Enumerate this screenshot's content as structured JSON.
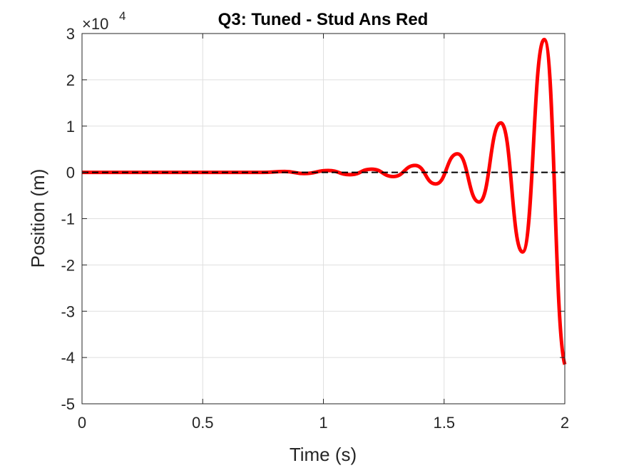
{
  "chart_data": {
    "type": "line",
    "title": "Q3: Tuned - Stud Ans Red",
    "xlabel": "Time (s)",
    "ylabel": "Position (m)",
    "xlim": [
      0,
      2
    ],
    "ylim": [
      -50000,
      30000
    ],
    "y_exponent_label": "×10",
    "y_exponent": "4",
    "x_ticks": [
      0,
      0.5,
      1,
      1.5,
      2
    ],
    "x_tick_labels": [
      "0",
      "0.5",
      "1",
      "1.5",
      "2"
    ],
    "y_ticks": [
      -50000,
      -40000,
      -30000,
      -20000,
      -10000,
      0,
      10000,
      20000,
      30000
    ],
    "y_tick_labels": [
      "-5",
      "-4",
      "-3",
      "-2",
      "-1",
      "0",
      "1",
      "2",
      "3"
    ],
    "grid": true,
    "series": [
      {
        "style": "solid",
        "color": "#ff0000",
        "x": [
          0,
          0.2,
          0.4,
          0.6,
          0.75,
          0.84,
          0.92,
          1.02,
          1.11,
          1.2,
          1.29,
          1.38,
          1.465,
          1.555,
          1.645,
          1.735,
          1.825,
          1.915,
          2.0
        ],
        "y": [
          0,
          0,
          0,
          0,
          0,
          200,
          -250,
          400,
          -500,
          700,
          -900,
          1500,
          -2500,
          4000,
          -6400,
          10700,
          -17200,
          28700,
          -41500
        ]
      },
      {
        "style": "dashed",
        "color": "#000000",
        "x": [
          0,
          2
        ],
        "y": [
          0,
          0
        ]
      }
    ]
  }
}
